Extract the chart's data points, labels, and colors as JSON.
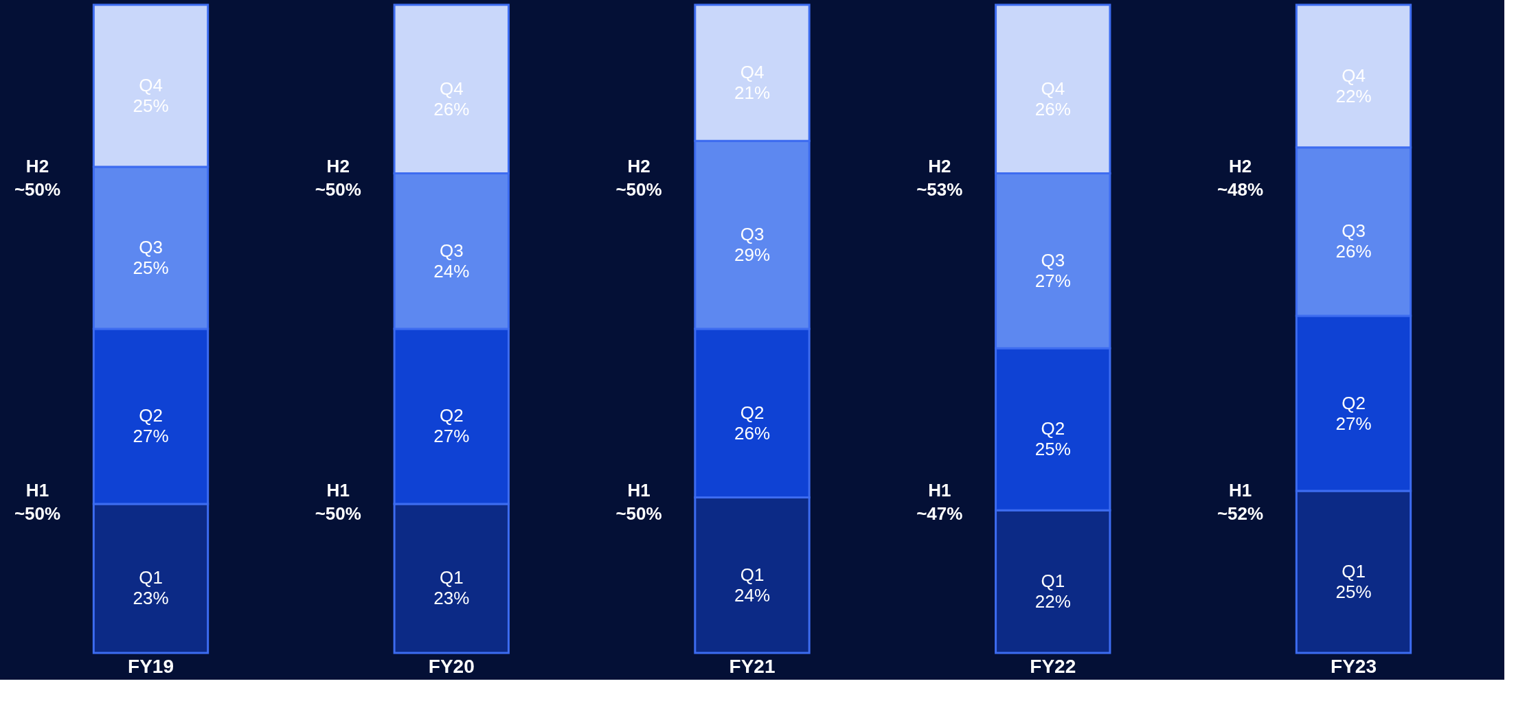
{
  "chart_data": {
    "type": "bar",
    "stacked": true,
    "categories": [
      "FY19",
      "FY20",
      "FY21",
      "FY22",
      "FY23"
    ],
    "ylim": [
      0,
      100
    ],
    "tick_labels": "x",
    "series": [
      {
        "name": "Q1",
        "color": "#0c2a86",
        "values": [
          23,
          23,
          24,
          22,
          25
        ],
        "value_labels": [
          "23%",
          "23%",
          "24%",
          "22%",
          "25%"
        ]
      },
      {
        "name": "Q2",
        "color": "#0f42d4",
        "values": [
          27,
          27,
          26,
          25,
          27
        ],
        "value_labels": [
          "27%",
          "27%",
          "26%",
          "25%",
          "27%"
        ]
      },
      {
        "name": "Q3",
        "color": "#5d88f0",
        "values": [
          25,
          24,
          29,
          27,
          26
        ],
        "value_labels": [
          "25%",
          "24%",
          "29%",
          "27%",
          "26%"
        ]
      },
      {
        "name": "Q4",
        "color": "#c9d7fa",
        "values": [
          25,
          26,
          21,
          26,
          22
        ],
        "value_labels": [
          "25%",
          "26%",
          "21%",
          "26%",
          "22%"
        ]
      }
    ],
    "annotations": [
      "H1 ~50%",
      "H2 ~50%",
      "H1 ~50%",
      "H2 ~50%",
      "H1 ~50%",
      "H2 ~50%",
      "H1 ~47%",
      "H2 ~53%",
      "H1 ~52%",
      "H2 ~48%"
    ]
  }
}
